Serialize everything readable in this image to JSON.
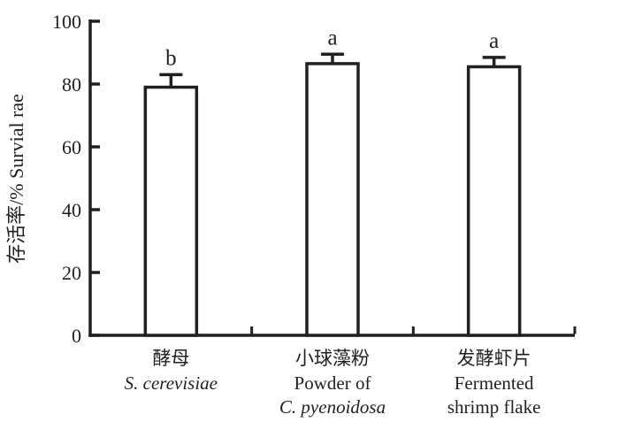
{
  "chart_data": {
    "type": "bar",
    "ylabel": "存活率/% Survial rae",
    "xlabel": "",
    "ylim": [
      0,
      100
    ],
    "yticks": [
      0,
      20,
      40,
      60,
      80,
      100
    ],
    "grid": false,
    "legend_position": "none",
    "bar_fill": "#ffffff",
    "ink_color": "#231f20",
    "values": [
      79,
      86.5,
      85.5
    ],
    "errors_plus": [
      4,
      3,
      3
    ],
    "sig_letters": [
      "b",
      "a",
      "a"
    ],
    "categories": [
      {
        "lines": [
          {
            "text": "酵母",
            "italic": false
          },
          {
            "text": "S. cerevisiae",
            "italic": true
          }
        ]
      },
      {
        "lines": [
          {
            "text": "小球藻粉",
            "italic": false
          },
          {
            "text": "Powder of",
            "italic": false
          },
          {
            "text": "C. pyenoidosa",
            "italic": true
          }
        ]
      },
      {
        "lines": [
          {
            "text": "发酵虾片",
            "italic": false
          },
          {
            "text": "Fermented",
            "italic": false
          },
          {
            "text": "shrimp flake",
            "italic": false
          }
        ]
      }
    ]
  }
}
